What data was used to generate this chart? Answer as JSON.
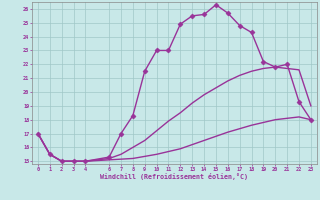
{
  "xlabel": "Windchill (Refroidissement éolien,°C)",
  "background_color": "#c8e8e8",
  "grid_color": "#b0d0d0",
  "line_color": "#993399",
  "xlim": [
    -0.5,
    23.5
  ],
  "ylim": [
    14.8,
    26.5
  ],
  "yticks": [
    15,
    16,
    17,
    18,
    19,
    20,
    21,
    22,
    23,
    24,
    25,
    26
  ],
  "xticks": [
    0,
    1,
    2,
    3,
    4,
    6,
    7,
    8,
    9,
    10,
    11,
    12,
    13,
    14,
    15,
    16,
    17,
    18,
    19,
    20,
    21,
    22,
    23
  ],
  "series": [
    {
      "x": [
        0,
        1,
        2,
        3,
        4,
        6,
        7,
        8,
        9,
        10,
        11,
        12,
        13,
        14,
        15,
        16,
        17,
        18,
        19,
        20,
        21,
        22,
        23
      ],
      "y": [
        17.0,
        15.5,
        15.0,
        15.0,
        15.0,
        15.1,
        15.15,
        15.2,
        15.35,
        15.5,
        15.7,
        15.9,
        16.2,
        16.5,
        16.8,
        17.1,
        17.35,
        17.6,
        17.8,
        18.0,
        18.1,
        18.2,
        18.0
      ],
      "marker": null,
      "linewidth": 1.0
    },
    {
      "x": [
        0,
        1,
        2,
        3,
        4,
        6,
        7,
        8,
        9,
        10,
        11,
        12,
        13,
        14,
        15,
        16,
        17,
        18,
        19,
        20,
        21,
        22,
        23
      ],
      "y": [
        17.0,
        15.5,
        15.0,
        15.0,
        15.0,
        15.2,
        15.5,
        16.0,
        16.5,
        17.2,
        17.9,
        18.5,
        19.2,
        19.8,
        20.3,
        20.8,
        21.2,
        21.5,
        21.7,
        21.8,
        21.7,
        21.6,
        19.0
      ],
      "marker": null,
      "linewidth": 1.0
    },
    {
      "x": [
        0,
        1,
        2,
        3,
        4,
        6,
        7,
        8,
        9,
        10,
        11,
        12,
        13,
        14,
        15,
        16,
        17,
        18,
        19,
        20,
        21,
        22,
        23
      ],
      "y": [
        17.0,
        15.5,
        15.0,
        15.0,
        15.0,
        15.3,
        17.0,
        18.3,
        21.5,
        23.0,
        23.0,
        24.9,
        25.5,
        25.6,
        26.3,
        25.7,
        24.8,
        24.3,
        22.2,
        21.8,
        22.0,
        19.3,
        18.0
      ],
      "marker": "D",
      "markersize": 2.5,
      "linewidth": 1.0
    }
  ]
}
